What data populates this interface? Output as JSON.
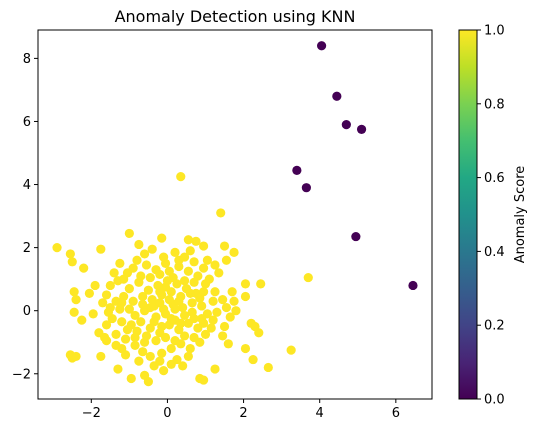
{
  "chart_data": {
    "type": "scatter",
    "title": "Anomaly Detection using KNN",
    "xlabel": "",
    "ylabel": "",
    "xlim": [
      -3.4,
      6.95
    ],
    "ylim": [
      -2.8,
      8.9
    ],
    "xticks": [
      -2,
      0,
      2,
      4,
      6
    ],
    "yticks": [
      -2,
      0,
      2,
      4,
      6,
      8
    ],
    "grid": false,
    "colorbar": {
      "label": "Anomaly Score",
      "range": [
        0.0,
        1.0
      ],
      "ticks": [
        0.0,
        0.2,
        0.4,
        0.6,
        0.8,
        1.0
      ],
      "ticklabels": [
        "0.0",
        "0.2",
        "0.4",
        "0.6",
        "0.8",
        "1.0"
      ],
      "colormap": "viridis"
    },
    "colors": {
      "normal": "#fde725",
      "anomaly": "#440154"
    },
    "series": [
      {
        "score": 0.0,
        "points": [
          [
            4.05,
            8.4
          ],
          [
            4.45,
            6.8
          ],
          [
            4.7,
            5.9
          ],
          [
            5.1,
            5.75
          ],
          [
            3.4,
            4.45
          ],
          [
            3.65,
            3.9
          ],
          [
            4.95,
            2.35
          ],
          [
            6.45,
            0.8
          ]
        ]
      },
      {
        "score": 1.0,
        "points": [
          [
            0.35,
            4.25
          ],
          [
            1.4,
            3.1
          ],
          [
            3.7,
            1.05
          ],
          [
            3.25,
            -1.25
          ],
          [
            2.65,
            -1.8
          ],
          [
            2.25,
            -1.55
          ],
          [
            2.05,
            -1.2
          ],
          [
            2.4,
            -0.7
          ],
          [
            2.3,
            -0.5
          ],
          [
            2.2,
            -0.4
          ],
          [
            2.05,
            0.45
          ],
          [
            2.05,
            0.85
          ],
          [
            2.45,
            0.85
          ],
          [
            1.75,
            1.85
          ],
          [
            1.55,
            1.6
          ],
          [
            1.5,
            2.05
          ],
          [
            0.95,
            2.05
          ],
          [
            0.75,
            2.2
          ],
          [
            0.55,
            2.25
          ],
          [
            -0.15,
            2.3
          ],
          [
            -1.0,
            2.45
          ],
          [
            -0.75,
            2.1
          ],
          [
            -0.4,
            1.95
          ],
          [
            -1.75,
            1.95
          ],
          [
            -2.9,
            2.0
          ],
          [
            -2.55,
            1.8
          ],
          [
            -2.5,
            1.55
          ],
          [
            -2.2,
            1.35
          ],
          [
            -2.45,
            0.6
          ],
          [
            -2.4,
            0.35
          ],
          [
            -2.45,
            -0.05
          ],
          [
            -2.25,
            -0.3
          ],
          [
            -1.95,
            -0.1
          ],
          [
            -1.8,
            -0.7
          ],
          [
            -1.65,
            -0.85
          ],
          [
            -2.55,
            -1.4
          ],
          [
            -2.5,
            -1.5
          ],
          [
            -2.4,
            -1.45
          ],
          [
            -1.75,
            -1.45
          ],
          [
            -1.3,
            -1.85
          ],
          [
            -0.95,
            -2.15
          ],
          [
            -0.5,
            -2.25
          ],
          [
            -0.6,
            -2.05
          ],
          [
            -0.2,
            -1.6
          ],
          [
            0.1,
            -1.7
          ],
          [
            0.4,
            -1.75
          ],
          [
            0.85,
            -2.15
          ],
          [
            0.95,
            -2.2
          ],
          [
            1.25,
            -1.85
          ],
          [
            1.45,
            -0.8
          ],
          [
            1.5,
            -0.5
          ],
          [
            1.2,
            -0.3
          ],
          [
            1.55,
            0.1
          ],
          [
            1.45,
            0.35
          ],
          [
            1.65,
            -0.2
          ],
          [
            1.25,
            0.6
          ],
          [
            1.1,
            1.0
          ],
          [
            1.35,
            1.2
          ],
          [
            0.95,
            1.35
          ],
          [
            0.7,
            1.55
          ],
          [
            0.45,
            1.7
          ],
          [
            0.2,
            1.85
          ],
          [
            -0.05,
            1.5
          ],
          [
            -0.3,
            1.3
          ],
          [
            -0.55,
            1.45
          ],
          [
            -0.8,
            1.6
          ],
          [
            -1.05,
            1.2
          ],
          [
            -1.3,
            0.95
          ],
          [
            -1.5,
            0.8
          ],
          [
            -1.6,
            0.5
          ],
          [
            -1.35,
            0.3
          ],
          [
            -1.15,
            0.45
          ],
          [
            -1.25,
            0.05
          ],
          [
            -1.45,
            -0.25
          ],
          [
            -1.6,
            -0.45
          ],
          [
            -1.35,
            -0.75
          ],
          [
            -1.1,
            -0.9
          ],
          [
            -0.85,
            -1.1
          ],
          [
            -0.65,
            -1.3
          ],
          [
            -0.45,
            -1.45
          ],
          [
            -0.15,
            -1.35
          ],
          [
            0.1,
            -1.2
          ],
          [
            0.35,
            -1.05
          ],
          [
            0.6,
            -1.2
          ],
          [
            0.85,
            -1.0
          ],
          [
            1.0,
            -0.75
          ],
          [
            0.8,
            -0.55
          ],
          [
            0.55,
            -0.4
          ],
          [
            0.3,
            -0.6
          ],
          [
            0.05,
            -0.45
          ],
          [
            -0.2,
            -0.7
          ],
          [
            -0.45,
            -0.55
          ],
          [
            -0.7,
            -0.35
          ],
          [
            -0.95,
            -0.45
          ],
          [
            -0.85,
            -0.15
          ],
          [
            -0.6,
            0.0
          ],
          [
            -0.35,
            0.15
          ],
          [
            -0.1,
            0.05
          ],
          [
            0.15,
            0.2
          ],
          [
            0.4,
            0.1
          ],
          [
            0.65,
            0.25
          ],
          [
            0.9,
            0.15
          ],
          [
            1.05,
            -0.1
          ],
          [
            0.75,
            0.55
          ],
          [
            0.5,
            0.7
          ],
          [
            0.25,
            0.85
          ],
          [
            0.0,
            0.95
          ],
          [
            -0.25,
            0.8
          ],
          [
            -0.5,
            0.65
          ],
          [
            -0.75,
            0.9
          ],
          [
            -1.0,
            0.7
          ],
          [
            -0.7,
            1.1
          ],
          [
            -0.45,
            1.05
          ],
          [
            -0.2,
            1.15
          ],
          [
            0.05,
            1.25
          ],
          [
            0.3,
            1.4
          ],
          [
            0.55,
            1.25
          ],
          [
            0.8,
            1.1
          ],
          [
            1.0,
            0.85
          ],
          [
            -0.9,
            0.3
          ],
          [
            -0.65,
            0.45
          ],
          [
            -0.4,
            0.35
          ],
          [
            -0.15,
            0.5
          ],
          [
            0.1,
            0.6
          ],
          [
            0.35,
            0.45
          ],
          [
            0.6,
            0.55
          ],
          [
            0.85,
            0.4
          ],
          [
            -0.3,
            -0.2
          ],
          [
            -0.05,
            -0.1
          ],
          [
            0.2,
            -0.3
          ],
          [
            0.45,
            -0.15
          ],
          [
            0.7,
            -0.25
          ],
          [
            0.95,
            -0.4
          ],
          [
            -0.55,
            -0.8
          ],
          [
            -0.3,
            -0.95
          ],
          [
            -0.05,
            -0.85
          ],
          [
            0.2,
            -0.95
          ],
          [
            0.45,
            -0.8
          ],
          [
            0.7,
            -0.85
          ],
          [
            -0.8,
            -0.65
          ],
          [
            -1.05,
            -0.6
          ],
          [
            -1.2,
            -0.35
          ],
          [
            -1.0,
            0.05
          ],
          [
            -1.2,
            0.25
          ],
          [
            0.15,
            1.05
          ],
          [
            -0.05,
            0.75
          ],
          [
            0.3,
            0.3
          ],
          [
            0.05,
            0.35
          ],
          [
            -0.2,
            0.25
          ],
          [
            -0.45,
            0.1
          ],
          [
            -0.65,
            0.2
          ],
          [
            -0.15,
            -0.5
          ],
          [
            0.1,
            -0.25
          ],
          [
            0.35,
            -0.4
          ],
          [
            -0.6,
            -1.0
          ],
          [
            -0.85,
            -0.85
          ],
          [
            1.2,
            0.3
          ],
          [
            1.3,
            -0.05
          ],
          [
            1.15,
            -0.55
          ],
          [
            -1.5,
            0.1
          ],
          [
            -1.7,
            0.25
          ],
          [
            -1.55,
            -0.05
          ],
          [
            0.6,
            1.9
          ],
          [
            0.3,
            1.6
          ],
          [
            -0.1,
            1.7
          ],
          [
            -0.6,
            1.8
          ],
          [
            1.05,
            1.6
          ],
          [
            1.25,
            1.45
          ],
          [
            -1.25,
            1.5
          ],
          [
            -1.4,
            1.2
          ],
          [
            0.55,
            -1.45
          ],
          [
            0.25,
            -1.55
          ],
          [
            -0.1,
            -1.9
          ],
          [
            -0.35,
            -1.75
          ],
          [
            -0.75,
            -1.6
          ],
          [
            -1.1,
            -1.4
          ],
          [
            -1.35,
            -1.1
          ],
          [
            -1.6,
            -0.95
          ],
          [
            1.6,
            -1.05
          ],
          [
            1.75,
            0.3
          ],
          [
            1.8,
            0.0
          ],
          [
            1.7,
            0.6
          ],
          [
            -0.35,
            -0.35
          ],
          [
            -0.2,
            0.6
          ],
          [
            0.45,
            0.95
          ],
          [
            0.2,
            0.05
          ],
          [
            0.65,
            -0.05
          ],
          [
            0.9,
            -0.25
          ],
          [
            -0.9,
            1.35
          ],
          [
            -1.15,
            1.0
          ],
          [
            -1.9,
            0.8
          ],
          [
            -2.05,
            0.55
          ],
          [
            -1.2,
            -1.2
          ],
          [
            0.95,
            0.6
          ],
          [
            0.7,
            0.9
          ]
        ]
      }
    ]
  }
}
